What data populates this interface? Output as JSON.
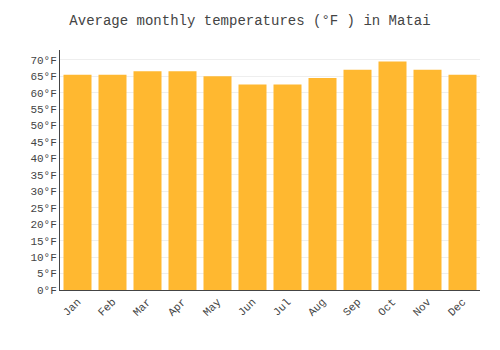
{
  "chart_data": {
    "type": "bar",
    "title": "Average monthly temperatures (°F ) in Matai",
    "categories": [
      "Jan",
      "Feb",
      "Mar",
      "Apr",
      "May",
      "Jun",
      "Jul",
      "Aug",
      "Sep",
      "Oct",
      "Nov",
      "Dec"
    ],
    "values": [
      65.5,
      65.5,
      66.5,
      66.5,
      65.0,
      62.5,
      62.5,
      64.5,
      67.0,
      69.5,
      67.0,
      65.5
    ],
    "color": "#FFB830",
    "ylim": [
      0,
      73
    ],
    "yticks": [
      {
        "value": 0,
        "label": "0°F"
      },
      {
        "value": 5,
        "label": "5°F"
      },
      {
        "value": 10,
        "label": "10°F"
      },
      {
        "value": 15,
        "label": "15°F"
      },
      {
        "value": 20,
        "label": "20°F"
      },
      {
        "value": 25,
        "label": "25°F"
      },
      {
        "value": 30,
        "label": "30°F"
      },
      {
        "value": 35,
        "label": "35°F"
      },
      {
        "value": 40,
        "label": "40°F"
      },
      {
        "value": 45,
        "label": "45°F"
      },
      {
        "value": 50,
        "label": "50°F"
      },
      {
        "value": 55,
        "label": "55°F"
      },
      {
        "value": 60,
        "label": "60°F"
      },
      {
        "value": 65,
        "label": "65°F"
      },
      {
        "value": 70,
        "label": "70°F"
      }
    ],
    "grid": true
  }
}
